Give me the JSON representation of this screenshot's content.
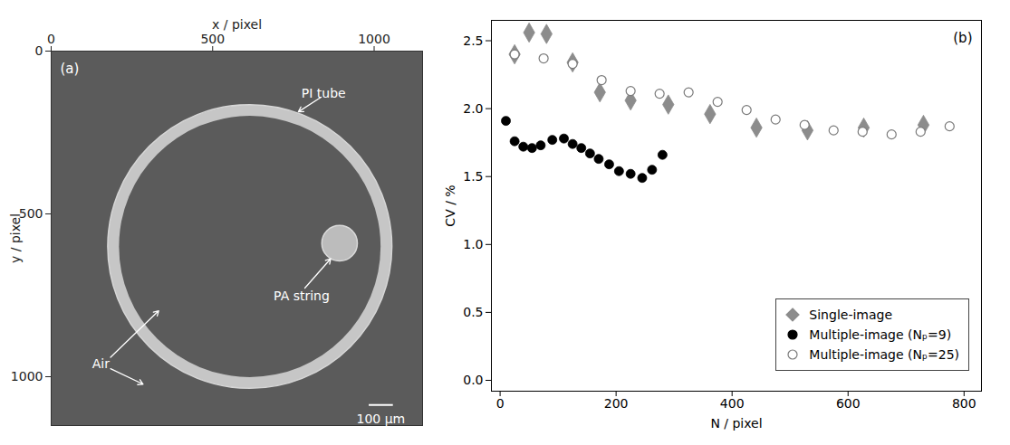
{
  "chart_data": [
    {
      "type": "image",
      "panel": "(a)",
      "xlabel": "x / pixel",
      "ylabel": "y / pixel",
      "xlim": [
        0,
        1150
      ],
      "ylim": [
        1150,
        0
      ],
      "xticks": [
        0,
        500,
        1000
      ],
      "yticks": [
        0,
        500,
        1000
      ],
      "objects": [
        {
          "name": "PI tube",
          "cx": 615,
          "cy": 600,
          "r_outer": 440,
          "r_inner": 405
        },
        {
          "name": "PA string",
          "cx": 893,
          "cy": 590,
          "r": 55
        }
      ],
      "annotations": [
        "Air"
      ],
      "scale_bar": "100 µm"
    },
    {
      "type": "scatter",
      "panel": "(b)",
      "xlabel": "N / pixel",
      "ylabel": "CV / %",
      "xlim": [
        -15,
        830
      ],
      "ylim": [
        -0.08,
        2.65
      ],
      "xticks": [
        0,
        200,
        400,
        600,
        800
      ],
      "yticks": [
        {
          "value": 0,
          "label": "0.0"
        },
        0.5,
        {
          "value": 1,
          "label": "1.0"
        },
        1.5,
        {
          "value": 2,
          "label": "2.0"
        },
        2.5
      ],
      "legend": "lower right",
      "series": [
        {
          "name": "Single-image",
          "color": "#8c8c8c",
          "marker": "diamond",
          "x": [
            25,
            50,
            80,
            125,
            172,
            225,
            290,
            362,
            442,
            530,
            627,
            730
          ],
          "values": [
            2.4,
            2.56,
            2.55,
            2.34,
            2.12,
            2.06,
            2.03,
            1.96,
            1.86,
            1.84,
            1.86,
            1.88
          ]
        },
        {
          "name": "Multiple-image (Nₚ=9)",
          "color": "#000000",
          "marker": "circle",
          "x": [
            10,
            25,
            40,
            55,
            70,
            90,
            110,
            125,
            140,
            155,
            170,
            188,
            205,
            225,
            245,
            262,
            280
          ],
          "values": [
            1.91,
            1.76,
            1.72,
            1.71,
            1.73,
            1.77,
            1.78,
            1.74,
            1.71,
            1.67,
            1.63,
            1.59,
            1.54,
            1.52,
            1.49,
            1.55,
            1.66
          ]
        },
        {
          "name": "Multiple-image (Nₚ=25)",
          "color": "#7a7a7a",
          "marker": "open_circle",
          "x": [
            25,
            75,
            125,
            175,
            225,
            275,
            325,
            375,
            425,
            475,
            525,
            575,
            625,
            675,
            725,
            775
          ],
          "values": [
            2.4,
            2.37,
            2.33,
            2.21,
            2.13,
            2.11,
            2.12,
            2.05,
            1.99,
            1.92,
            1.88,
            1.84,
            1.83,
            1.81,
            1.83,
            1.87
          ]
        }
      ]
    }
  ]
}
